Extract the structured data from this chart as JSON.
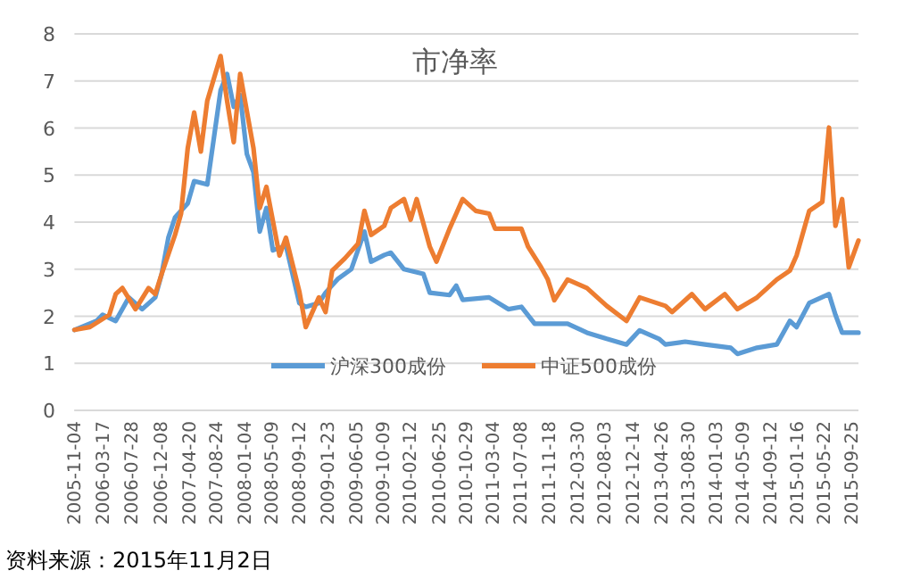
{
  "chart_data": {
    "type": "line",
    "title": "市净率",
    "annotations": [
      "资料来源：2015年11月2日"
    ],
    "xlim": [
      "2005-11-04",
      "2015-10-30"
    ],
    "xticks": [
      "2005-11-04",
      "2006-03-17",
      "2006-07-28",
      "2006-12-08",
      "2007-04-20",
      "2007-08-24",
      "2008-01-04",
      "2008-05-09",
      "2008-09-12",
      "2009-01-23",
      "2009-06-05",
      "2009-10-09",
      "2010-02-12",
      "2010-06-25",
      "2010-10-29",
      "2011-03-04",
      "2011-07-08",
      "2011-11-18",
      "2012-03-30",
      "2012-08-03",
      "2012-12-14",
      "2013-04-26",
      "2013-08-30",
      "2014-01-03",
      "2014-05-09",
      "2014-09-12",
      "2015-01-16",
      "2015-05-22",
      "2015-09-25"
    ],
    "ylim": [
      0,
      8
    ],
    "yticks": [
      0,
      1,
      2,
      3,
      4,
      5,
      6,
      7,
      8
    ],
    "grid": "y",
    "legend": "bottom",
    "marker": "none",
    "line_style": "solid",
    "series": [
      {
        "name": "沪深300成份",
        "color": "#5b9bd5",
        "x": [
          "2005-11-04",
          "2006-02",
          "2006-03",
          "2006-05",
          "2006-07",
          "2006-09",
          "2006-11",
          "2006-12",
          "2007-01",
          "2007-02",
          "2007-04",
          "2007-05",
          "2007-07",
          "2007-08",
          "2007-09",
          "2007-10",
          "2007-11",
          "2007-12",
          "2008-01",
          "2008-02",
          "2008-03",
          "2008-04",
          "2008-05",
          "2008-07",
          "2008-09",
          "2008-10",
          "2008-12",
          "2009-01",
          "2009-03",
          "2009-05",
          "2009-07",
          "2009-08",
          "2009-10",
          "2009-11",
          "2010-01",
          "2010-04",
          "2010-05",
          "2010-08",
          "2010-09",
          "2010-10",
          "2011-02",
          "2011-05",
          "2011-07",
          "2011-09",
          "2012-02",
          "2012-05",
          "2012-08",
          "2012-11",
          "2013-01",
          "2013-04",
          "2013-05",
          "2013-08",
          "2013-11",
          "2014-03",
          "2014-04",
          "2014-07",
          "2014-10",
          "2014-12",
          "2015-01",
          "2015-03",
          "2015-06",
          "2015-07",
          "2015-08",
          "2015-10-30"
        ],
        "values": [
          1.71,
          1.9,
          2.03,
          1.9,
          2.4,
          2.15,
          2.4,
          2.9,
          3.67,
          4.1,
          4.4,
          4.87,
          4.8,
          5.8,
          6.8,
          7.15,
          6.45,
          6.7,
          5.45,
          5.06,
          3.8,
          4.3,
          3.4,
          3.5,
          2.28,
          2.2,
          2.28,
          2.5,
          2.8,
          3.0,
          3.8,
          3.16,
          3.3,
          3.35,
          3.0,
          2.9,
          2.5,
          2.45,
          2.65,
          2.35,
          2.4,
          2.15,
          2.2,
          1.84,
          1.84,
          1.65,
          1.52,
          1.4,
          1.7,
          1.52,
          1.4,
          1.46,
          1.4,
          1.33,
          1.2,
          1.33,
          1.4,
          1.9,
          1.77,
          2.28,
          2.47,
          2.03,
          1.65,
          1.65
        ]
      },
      {
        "name": "中证500成份",
        "color": "#ed7d31",
        "x": [
          "2005-11-04",
          "2006-01",
          "2006-04",
          "2006-05",
          "2006-06",
          "2006-08",
          "2006-10",
          "2006-11",
          "2006-12",
          "2007-02",
          "2007-03",
          "2007-04",
          "2007-05",
          "2007-06",
          "2007-07",
          "2007-09",
          "2007-10",
          "2007-11",
          "2007-12",
          "2008-02",
          "2008-03",
          "2008-04",
          "2008-06",
          "2008-07",
          "2008-09",
          "2008-10",
          "2008-12",
          "2009-01",
          "2009-02",
          "2009-04",
          "2009-06",
          "2009-07",
          "2009-08",
          "2009-10",
          "2009-11",
          "2010-01",
          "2010-02",
          "2010-03",
          "2010-05",
          "2010-06",
          "2010-08",
          "2010-10",
          "2010-12",
          "2011-02",
          "2011-03",
          "2011-07",
          "2011-08",
          "2011-10",
          "2011-11",
          "2011-12",
          "2012-02",
          "2012-05",
          "2012-08",
          "2012-11",
          "2013-01",
          "2013-05",
          "2013-06",
          "2013-09",
          "2013-11",
          "2014-02",
          "2014-04",
          "2014-07",
          "2014-10",
          "2014-12",
          "2015-01",
          "2015-03",
          "2015-05",
          "2015-06",
          "2015-07",
          "2015-08",
          "2015-09",
          "2015-10-30"
        ],
        "values": [
          1.71,
          1.77,
          2.03,
          2.47,
          2.6,
          2.15,
          2.6,
          2.47,
          2.9,
          3.73,
          4.18,
          5.57,
          6.33,
          5.5,
          6.58,
          7.53,
          6.58,
          5.7,
          7.15,
          5.57,
          4.3,
          4.75,
          3.29,
          3.67,
          2.53,
          1.77,
          2.4,
          2.09,
          2.97,
          3.23,
          3.54,
          4.24,
          3.73,
          3.92,
          4.3,
          4.49,
          4.05,
          4.49,
          3.48,
          3.16,
          3.86,
          4.49,
          4.24,
          4.18,
          3.86,
          3.86,
          3.48,
          3.04,
          2.78,
          2.34,
          2.78,
          2.6,
          2.22,
          1.9,
          2.4,
          2.22,
          2.09,
          2.47,
          2.15,
          2.47,
          2.15,
          2.4,
          2.78,
          2.97,
          3.29,
          4.24,
          4.43,
          6.01,
          3.92,
          4.49,
          3.04,
          3.61
        ]
      }
    ]
  }
}
